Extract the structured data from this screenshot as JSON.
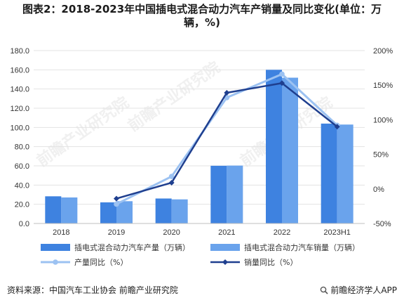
{
  "title_line1": "图表2：2018-2023年中国插电式混合动力汽车产销量及同比变化(单位：万",
  "title_line2": "辆，%)",
  "source": "资料来源：中国汽车工业协会 前瞻产业研究院",
  "brand": "前瞻经济学人APP",
  "watermark": "前瞻产业研究院",
  "chart_data": {
    "type": "bar",
    "categories": [
      "2018",
      "2019",
      "2020",
      "2021",
      "2022",
      "2023H1"
    ],
    "y_left": {
      "ticks": [
        "0.0",
        "20.0",
        "40.0",
        "60.0",
        "80.0",
        "100.0",
        "120.0",
        "140.0",
        "160.0",
        "180.0"
      ],
      "range": [
        0,
        180
      ]
    },
    "y_right": {
      "ticks": [
        "-50%",
        "0%",
        "50%",
        "100%",
        "150%",
        "200%"
      ],
      "range": [
        -50,
        200
      ]
    },
    "grid": true,
    "legend_position": "bottom",
    "series": [
      {
        "name": "插电式混合动力汽车产量（万辆）",
        "type": "bar",
        "axis": "left",
        "color": "#3E82E0",
        "values": [
          28.3,
          22.0,
          26.0,
          60.1,
          160.0,
          104.0
        ]
      },
      {
        "name": "插电式混合动力汽车销量（万辆）",
        "type": "bar",
        "axis": "left",
        "color": "#6AA3EC",
        "values": [
          27.1,
          23.2,
          25.1,
          60.3,
          151.8,
          103.0
        ]
      },
      {
        "name": "产量同比（%）",
        "type": "line",
        "axis": "right",
        "color": "#9CC2F2",
        "values": [
          null,
          -22,
          18,
          132,
          166,
          92
        ]
      },
      {
        "name": "销量同比（%）",
        "type": "line",
        "axis": "right",
        "color": "#1F3F8F",
        "values": [
          null,
          -14,
          9,
          139,
          153,
          90
        ]
      }
    ]
  }
}
